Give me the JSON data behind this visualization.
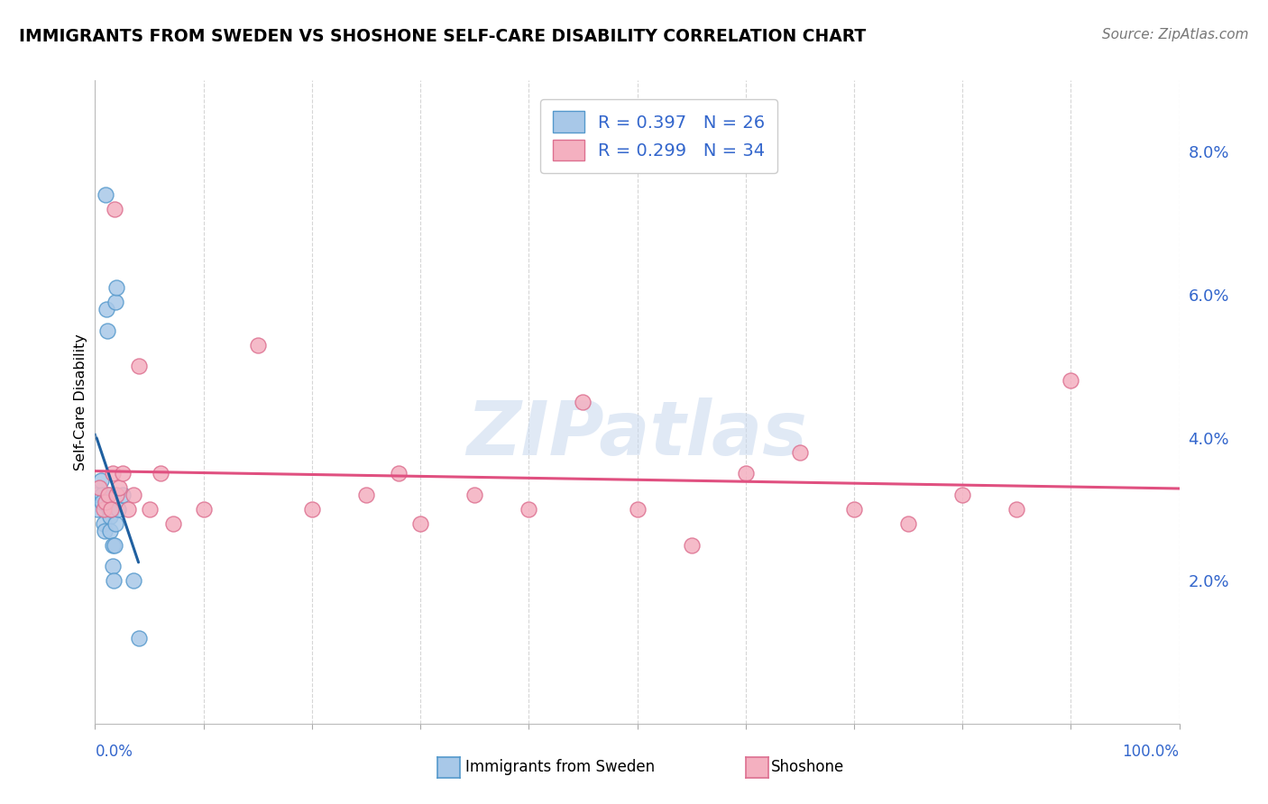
{
  "title": "IMMIGRANTS FROM SWEDEN VS SHOSHONE SELF-CARE DISABILITY CORRELATION CHART",
  "source": "Source: ZipAtlas.com",
  "ylabel": "Self-Care Disability",
  "legend_r1": "R = 0.397",
  "legend_n1": "N = 26",
  "legend_r2": "R = 0.299",
  "legend_n2": "N = 34",
  "watermark_text": "ZIPatlas",
  "blue_fill": "#a8c8e8",
  "blue_edge": "#5599cc",
  "blue_line": "#2060a0",
  "pink_fill": "#f4b0c0",
  "pink_edge": "#dd7090",
  "pink_line": "#e05080",
  "axis_label_color": "#3366cc",
  "grid_color": "#cccccc",
  "bg_color": "#ffffff",
  "blue_x": [
    0.15,
    0.18,
    0.55,
    0.6,
    0.65,
    0.8,
    0.9,
    1.0,
    1.05,
    1.1,
    1.2,
    1.3,
    1.35,
    1.4,
    1.5,
    1.6,
    1.65,
    1.7,
    1.8,
    1.85,
    1.9,
    2.0,
    2.1,
    2.5,
    3.5,
    4.0
  ],
  "blue_y": [
    3.2,
    3.0,
    3.4,
    3.2,
    3.1,
    2.8,
    2.7,
    7.4,
    5.8,
    5.5,
    3.2,
    3.0,
    2.9,
    2.7,
    3.0,
    2.5,
    2.2,
    2.0,
    2.5,
    2.8,
    5.9,
    6.1,
    3.0,
    3.2,
    2.0,
    1.2
  ],
  "pink_x": [
    0.4,
    0.8,
    1.0,
    1.2,
    1.5,
    1.6,
    1.8,
    2.0,
    2.2,
    2.5,
    3.0,
    3.5,
    4.0,
    5.0,
    6.0,
    7.2,
    10.0,
    15.0,
    20.0,
    25.0,
    28.0,
    30.0,
    35.0,
    40.0,
    45.0,
    50.0,
    55.0,
    60.0,
    65.0,
    70.0,
    75.0,
    80.0,
    85.0,
    90.0
  ],
  "pink_y": [
    3.3,
    3.0,
    3.1,
    3.2,
    3.0,
    3.5,
    7.2,
    3.2,
    3.3,
    3.5,
    3.0,
    3.2,
    5.0,
    3.0,
    3.5,
    2.8,
    3.0,
    5.3,
    3.0,
    3.2,
    3.5,
    2.8,
    3.2,
    3.0,
    4.5,
    3.0,
    2.5,
    3.5,
    3.8,
    3.0,
    2.8,
    3.2,
    3.0,
    4.8
  ],
  "xlim": [
    0,
    100
  ],
  "ylim": [
    0.0,
    0.09
  ],
  "ytick_right": [
    0.02,
    0.04,
    0.06,
    0.08
  ],
  "ytick_right_labels": [
    "2.0%",
    "4.0%",
    "6.0%",
    "8.0%"
  ]
}
